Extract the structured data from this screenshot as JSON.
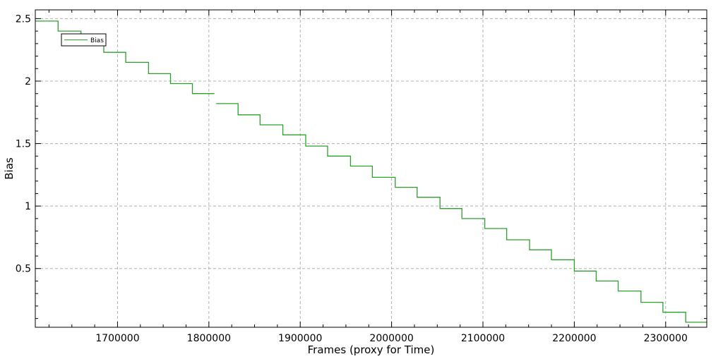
{
  "chart_data": {
    "type": "line",
    "style": "step",
    "xlabel": "Frames (proxy for Time)",
    "ylabel": "Bias",
    "xlim": [
      1610000,
      2345000
    ],
    "ylim": [
      0.03,
      2.57
    ],
    "x_ticks": [
      1700000,
      1800000,
      1900000,
      2000000,
      2100000,
      2200000,
      2300000
    ],
    "x_tick_labels": [
      "1700000",
      "1800000",
      "1900000",
      "2000000",
      "2100000",
      "2200000",
      "2300000"
    ],
    "y_ticks": [
      0.5,
      1,
      1.5,
      2,
      2.5
    ],
    "y_tick_labels": [
      "0.5",
      "1",
      "1.5",
      "2",
      "2.5"
    ],
    "grid": true,
    "legend_position": "top-left",
    "line_color": "#2ca02c",
    "series": [
      {
        "name": "Bias",
        "segments": [
          [
            [
              1610000,
              2.48
            ],
            [
              1635000,
              2.48
            ],
            [
              1635000,
              2.4
            ],
            [
              1660000,
              2.4
            ],
            [
              1660000,
              2.31
            ],
            [
              1685000,
              2.31
            ],
            [
              1685000,
              2.23
            ],
            [
              1709000,
              2.23
            ],
            [
              1709000,
              2.15
            ],
            [
              1734000,
              2.15
            ],
            [
              1734000,
              2.06
            ],
            [
              1758000,
              2.06
            ],
            [
              1758000,
              1.98
            ],
            [
              1782000,
              1.98
            ],
            [
              1782000,
              1.9
            ],
            [
              1806000,
              1.9
            ]
          ],
          [
            [
              1808000,
              1.82
            ],
            [
              1832000,
              1.82
            ],
            [
              1832000,
              1.73
            ],
            [
              1856000,
              1.73
            ],
            [
              1856000,
              1.65
            ],
            [
              1881000,
              1.65
            ],
            [
              1881000,
              1.57
            ],
            [
              1906000,
              1.57
            ],
            [
              1906000,
              1.48
            ],
            [
              1930000,
              1.48
            ],
            [
              1930000,
              1.4
            ],
            [
              1955000,
              1.4
            ],
            [
              1955000,
              1.32
            ],
            [
              1979000,
              1.32
            ],
            [
              1979000,
              1.23
            ],
            [
              2004000,
              1.23
            ],
            [
              2004000,
              1.15
            ],
            [
              2028000,
              1.15
            ],
            [
              2028000,
              1.07
            ],
            [
              2053000,
              1.07
            ],
            [
              2053000,
              0.98
            ],
            [
              2077000,
              0.98
            ],
            [
              2077000,
              0.9
            ],
            [
              2102000,
              0.9
            ],
            [
              2102000,
              0.82
            ],
            [
              2126000,
              0.82
            ],
            [
              2126000,
              0.73
            ],
            [
              2151000,
              0.73
            ],
            [
              2151000,
              0.65
            ],
            [
              2175000,
              0.65
            ],
            [
              2175000,
              0.57
            ],
            [
              2200000,
              0.57
            ],
            [
              2200000,
              0.48
            ],
            [
              2224000,
              0.48
            ],
            [
              2224000,
              0.4
            ],
            [
              2248000,
              0.4
            ],
            [
              2248000,
              0.32
            ],
            [
              2273000,
              0.32
            ],
            [
              2273000,
              0.23
            ],
            [
              2297000,
              0.23
            ],
            [
              2297000,
              0.15
            ],
            [
              2322000,
              0.15
            ],
            [
              2322000,
              0.07
            ],
            [
              2345000,
              0.07
            ]
          ]
        ]
      }
    ]
  }
}
